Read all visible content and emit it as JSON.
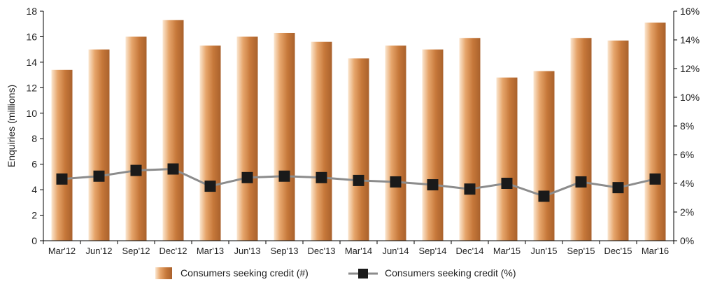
{
  "chart_data": {
    "type": "bar",
    "categories": [
      "Mar'12",
      "Jun'12",
      "Sep'12",
      "Dec'12",
      "Mar'13",
      "Jun'13",
      "Sep'13",
      "Dec'13",
      "Mar'14",
      "Jun'14",
      "Sep'14",
      "Dec'14",
      "Mar'15",
      "Jun'15",
      "Sep'15",
      "Dec'15",
      "Mar'16"
    ],
    "series": [
      {
        "name": "Consumers seeking credit (#)",
        "type": "bar",
        "axis": "left",
        "values": [
          13.4,
          15.0,
          16.0,
          17.3,
          15.3,
          16.0,
          16.3,
          15.6,
          14.3,
          15.3,
          15.0,
          15.9,
          12.8,
          13.3,
          15.9,
          15.7,
          17.1
        ],
        "color": "#e09a5e"
      },
      {
        "name": "Consumers seeking credit (%)",
        "type": "line",
        "axis": "right",
        "values": [
          4.3,
          4.5,
          4.9,
          5.0,
          3.8,
          4.4,
          4.5,
          4.4,
          4.2,
          4.1,
          3.9,
          3.6,
          4.0,
          3.1,
          4.1,
          3.7,
          4.3
        ],
        "color": "#8c8c8c",
        "marker_color": "#1a1a1a"
      }
    ],
    "ylabel": "Enquiries (millions)",
    "ylim": [
      0,
      18
    ],
    "yticks": [
      "0",
      "2",
      "4",
      "6",
      "8",
      "10",
      "12",
      "14",
      "16",
      "18"
    ],
    "y2lim": [
      0,
      16
    ],
    "y2ticks": [
      "0%",
      "2%",
      "4%",
      "6%",
      "8%",
      "10%",
      "12%",
      "14%",
      "16%"
    ],
    "grid": false,
    "legend_position": "bottom-center"
  }
}
